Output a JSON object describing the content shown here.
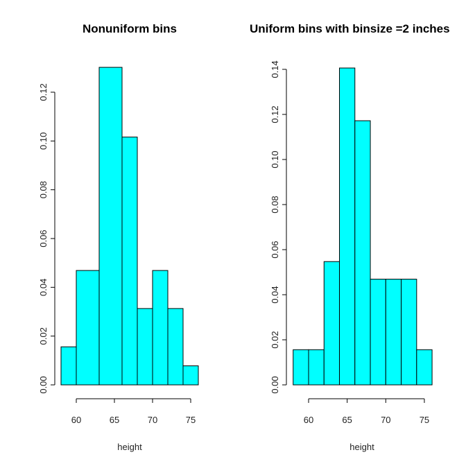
{
  "chart_data": [
    {
      "type": "bar",
      "title": "Nonuniform bins",
      "xlabel": "height",
      "ylabel": "",
      "bin_edges": [
        58,
        60,
        63,
        66,
        68,
        70,
        72,
        74,
        76
      ],
      "values": [
        0.0156,
        0.0469,
        0.1302,
        0.1016,
        0.0313,
        0.0469,
        0.0313,
        0.0078
      ],
      "xticks": [
        60,
        65,
        70,
        75
      ],
      "xtick_labels": [
        "60",
        "65",
        "70",
        "75"
      ],
      "yticks": [
        0,
        0.02,
        0.04,
        0.06,
        0.08,
        0.1,
        0.12
      ],
      "ytick_labels": [
        "0.00",
        "0.02",
        "0.04",
        "0.06",
        "0.08",
        "0.10",
        "0.12"
      ],
      "bar_color": "#00ffff"
    },
    {
      "type": "bar",
      "title": "Uniform bins with binsize =2 inches",
      "xlabel": "height",
      "ylabel": "",
      "bin_edges": [
        58,
        60,
        62,
        64,
        66,
        68,
        70,
        72,
        74,
        76
      ],
      "values": [
        0.0156,
        0.0156,
        0.0547,
        0.1406,
        0.1172,
        0.0469,
        0.0469,
        0.0469,
        0.0156
      ],
      "xticks": [
        60,
        65,
        70,
        75
      ],
      "xtick_labels": [
        "60",
        "65",
        "70",
        "75"
      ],
      "yticks": [
        0,
        0.02,
        0.04,
        0.06,
        0.08,
        0.1,
        0.12,
        0.14
      ],
      "ytick_labels": [
        "0.00",
        "0.02",
        "0.04",
        "0.06",
        "0.08",
        "0.10",
        "0.12",
        "0.14"
      ],
      "bar_color": "#00ffff"
    }
  ]
}
